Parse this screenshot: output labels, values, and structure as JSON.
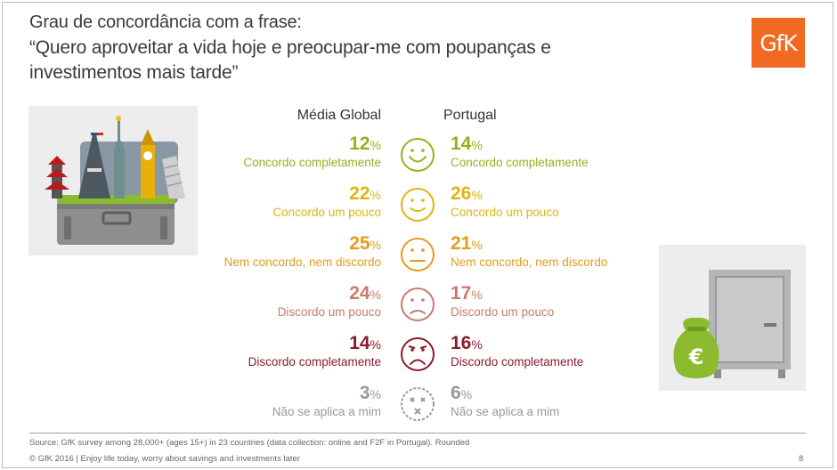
{
  "title": {
    "line1": "Grau de concordância com a frase:",
    "quote": "“Quero aproveitar a vida hoje e preocupar-me com poupanças e investimentos mais tarde”"
  },
  "logo": {
    "text": "GfK"
  },
  "colors": {
    "lime": "#9aae1c",
    "yellow": "#dfb414",
    "orange": "#e39b1c",
    "rose": "#c97a6c",
    "maroon": "#8a1c2a",
    "grey": "#999999",
    "logo_orange": "#f26a21"
  },
  "icons": [
    "very-happy-face-icon",
    "happy-face-icon",
    "neutral-face-icon",
    "sad-face-icon",
    "very-sad-face-icon",
    "dead-face-icon"
  ],
  "chart_data": {
    "type": "table",
    "categories": [
      "Concordo completamente",
      "Concordo um pouco",
      "Nem concordo, nem discordo",
      "Discordo um pouco",
      "Discordo completamente",
      "Não se aplica a mim"
    ],
    "series": [
      {
        "name": "Média Global",
        "values": [
          12,
          22,
          25,
          24,
          14,
          3
        ]
      },
      {
        "name": "Portugal",
        "values": [
          14,
          26,
          21,
          17,
          16,
          6
        ]
      }
    ],
    "unit": "%"
  },
  "footer": {
    "source": "Source: GfK survey among 28,000+ (ages 15+) in 23 countries (data collection: online and F2F in Portugal). Rounded",
    "copyright": "© GfK 2016 | Enjoy life today, worry about savings and investments later",
    "page": "8"
  }
}
